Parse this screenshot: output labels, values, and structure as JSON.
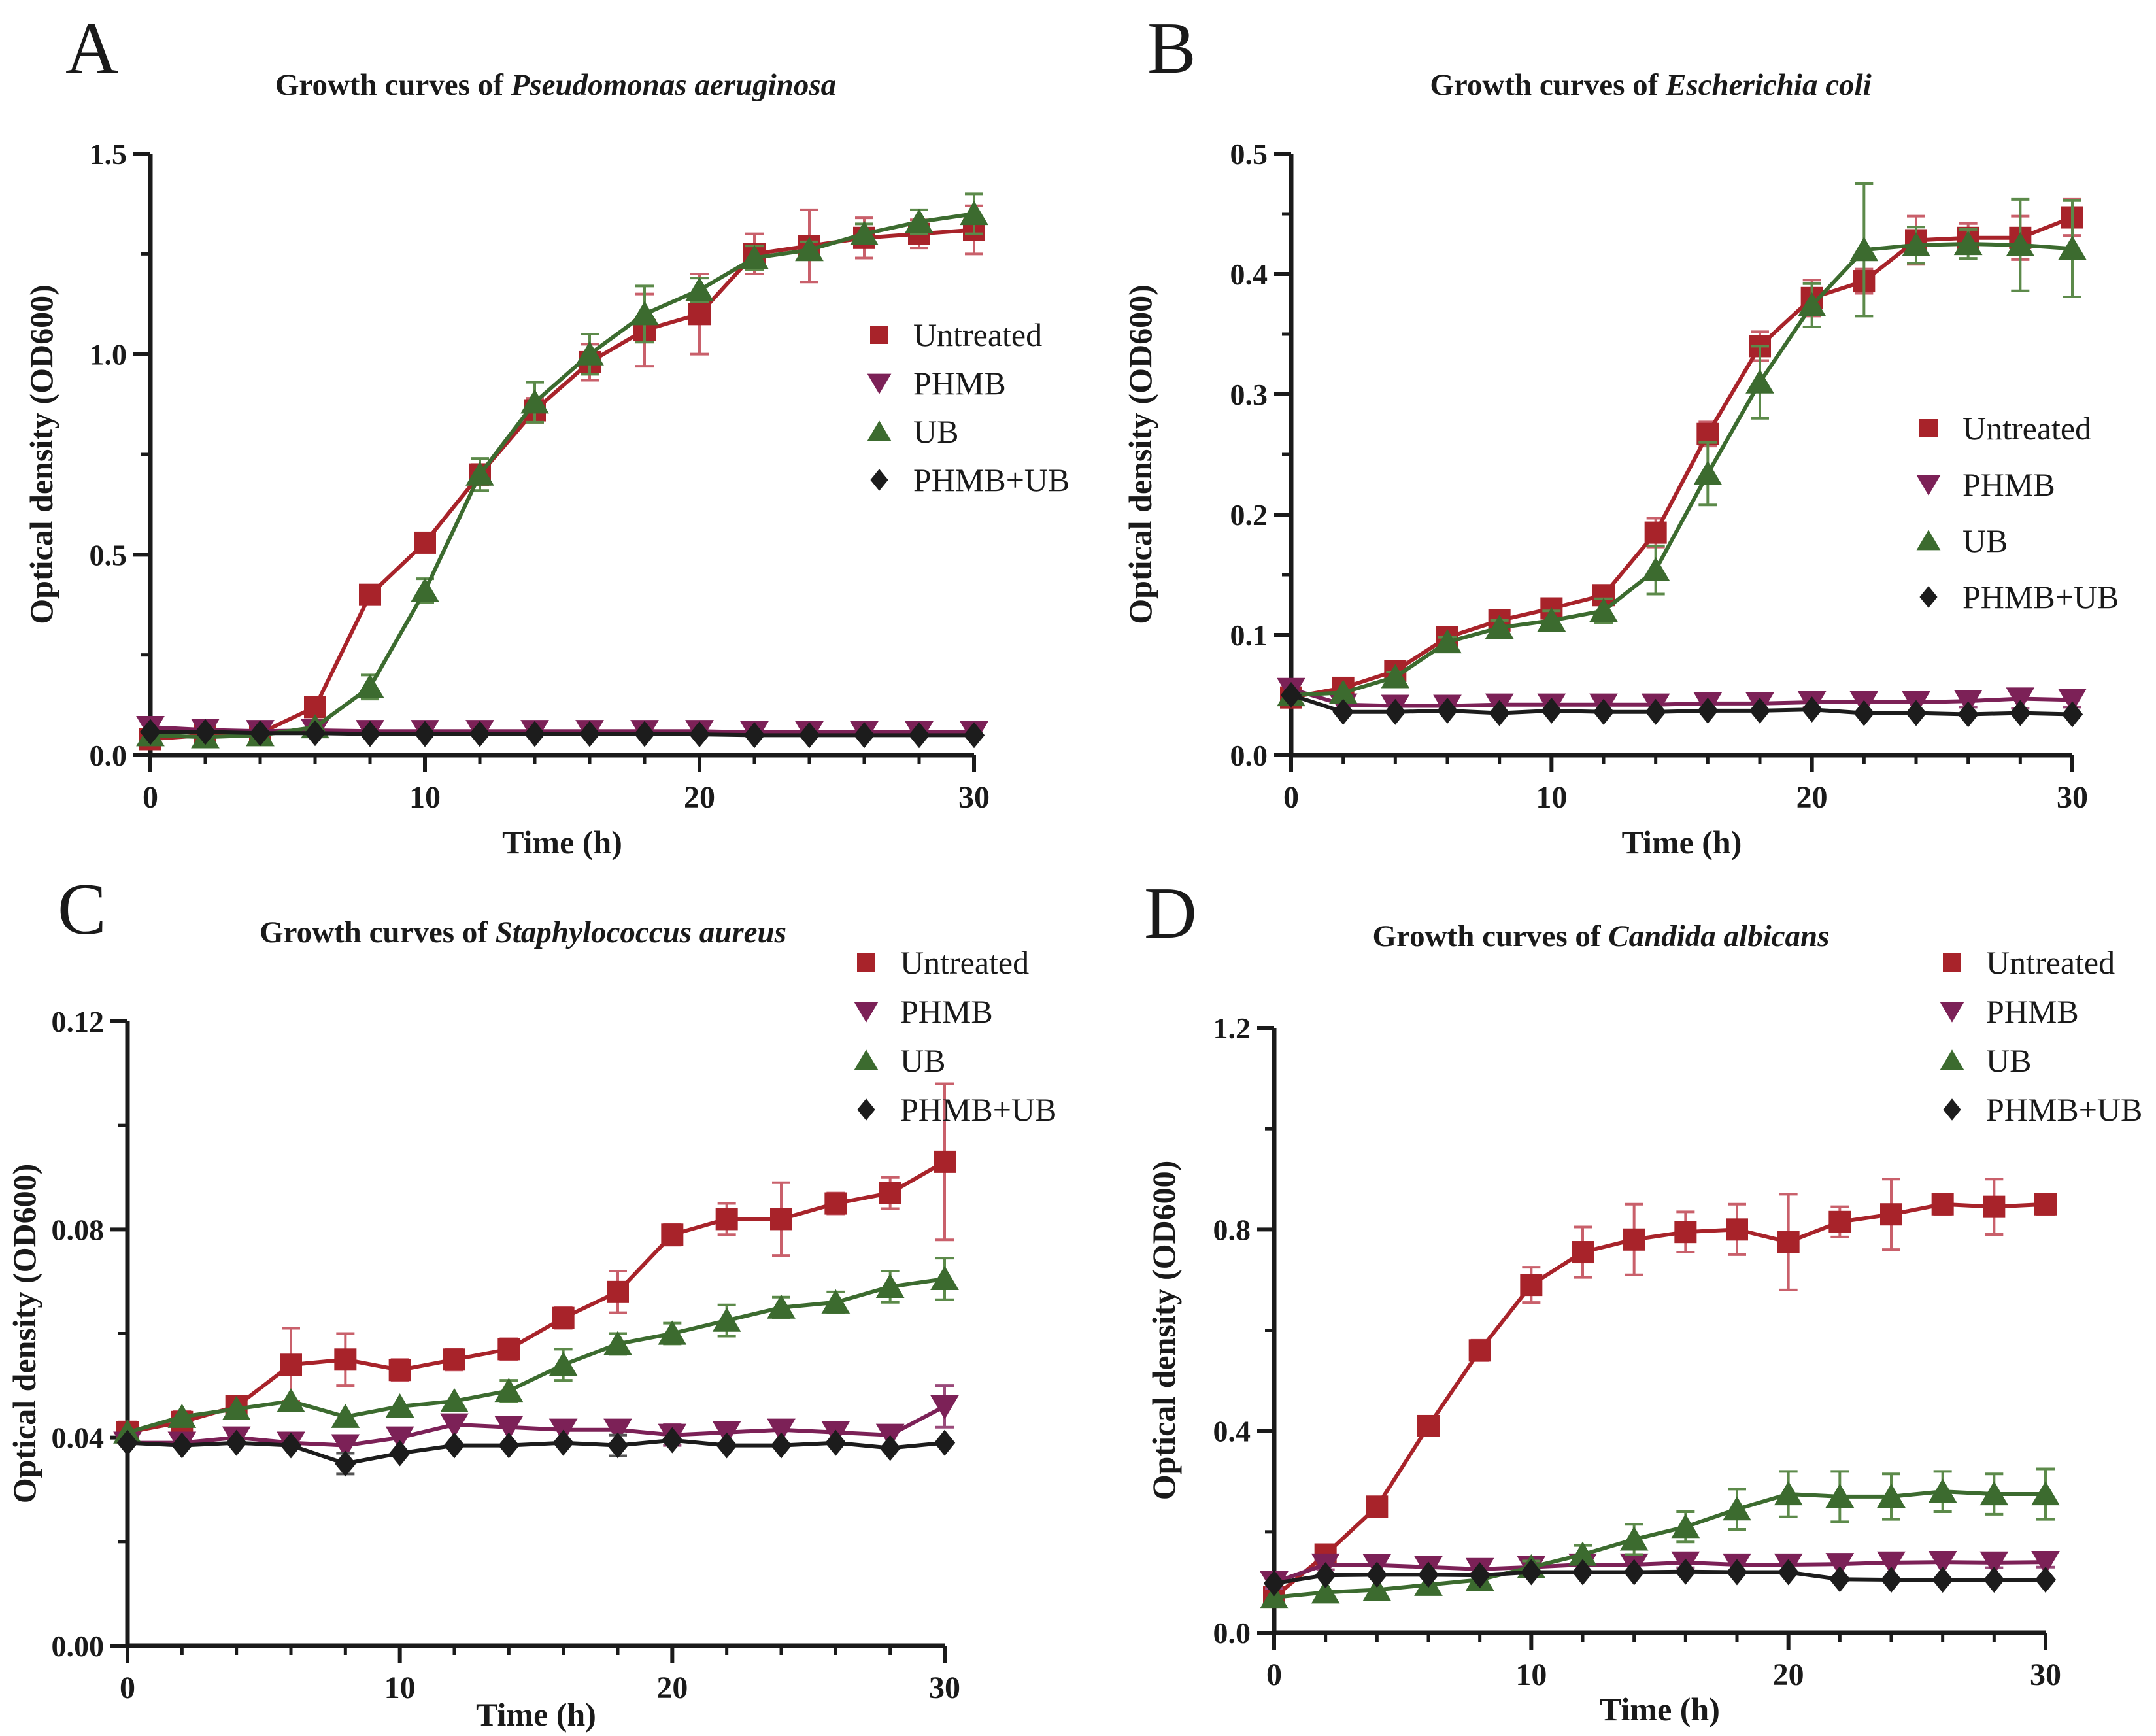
{
  "figure_background": "#ffffff",
  "xlabel": "Time (h)",
  "ylabel": "Optical density (OD600)",
  "legend_labels": [
    "Untreated",
    "PHMB",
    "UB",
    "PHMB+UB"
  ],
  "colors": {
    "untreated": "#A8232A",
    "phmb": "#7C2157",
    "ub": "#3C6B2F",
    "phmb_ub": "#1C1C1C",
    "axis": "#1a1a1a",
    "untreated_error": "#C9606B",
    "phmb_error": "#9A4A7A",
    "ub_error": "#5C8A4A",
    "phmb_ub_error": "#555555"
  },
  "chart_data": [
    {
      "type": "line",
      "panel_label": "A",
      "title_prefix": "Growth curves of ",
      "title_species": "Pseudomonas aeruginosa",
      "xlabel": "Time (h)",
      "ylabel": "Optical density (OD600)",
      "xlim": [
        0,
        30
      ],
      "ylim": [
        0,
        1.5
      ],
      "x": [
        0,
        2,
        4,
        6,
        8,
        10,
        12,
        14,
        16,
        18,
        20,
        22,
        24,
        26,
        28,
        30
      ],
      "xticks": [
        {
          "v": 0,
          "label": "0"
        },
        {
          "v": 10,
          "label": "10"
        },
        {
          "v": 20,
          "label": "20"
        },
        {
          "v": 30,
          "label": "30"
        }
      ],
      "xminor": [
        2,
        4,
        6,
        8,
        12,
        14,
        16,
        18,
        22,
        24,
        26,
        28
      ],
      "yticks": [
        {
          "v": 0,
          "label": "0.0"
        },
        {
          "v": 0.5,
          "label": "0.5"
        },
        {
          "v": 1.0,
          "label": "1.0"
        },
        {
          "v": 1.5,
          "label": "1.5"
        }
      ],
      "yminor": [
        0.25,
        0.75,
        1.25
      ],
      "legend_position": "right-middle",
      "series": [
        {
          "name": "Untreated",
          "marker": "square",
          "color": "#A8232A",
          "err_color": "#C9606B",
          "values": [
            0.04,
            0.05,
            0.055,
            0.12,
            0.4,
            0.53,
            0.7,
            0.86,
            0.98,
            1.06,
            1.1,
            1.25,
            1.27,
            1.29,
            1.3,
            1.31
          ],
          "errors": [
            0,
            0,
            0,
            0,
            0.02,
            0.02,
            0.025,
            0.03,
            0.045,
            0.09,
            0.1,
            0.05,
            0.09,
            0.05,
            0.035,
            0.06
          ]
        },
        {
          "name": "PHMB",
          "marker": "triangle-down",
          "color": "#7C2157",
          "err_color": "#9A4A7A",
          "values": [
            0.07,
            0.063,
            0.06,
            0.062,
            0.06,
            0.06,
            0.06,
            0.06,
            0.06,
            0.06,
            0.06,
            0.057,
            0.057,
            0.057,
            0.057,
            0.057
          ],
          "errors": [
            0,
            0,
            0,
            0,
            0,
            0,
            0,
            0,
            0,
            0,
            0,
            0,
            0,
            0,
            0,
            0
          ]
        },
        {
          "name": "UB",
          "marker": "triangle-up",
          "color": "#3C6B2F",
          "err_color": "#5C8A4A",
          "values": [
            0.05,
            0.045,
            0.05,
            0.07,
            0.17,
            0.41,
            0.7,
            0.88,
            1.0,
            1.1,
            1.16,
            1.24,
            1.26,
            1.3,
            1.33,
            1.35
          ],
          "errors": [
            0,
            0,
            0,
            0,
            0.03,
            0.03,
            0.04,
            0.05,
            0.05,
            0.07,
            0.03,
            0.03,
            0.02,
            0.025,
            0.03,
            0.05
          ]
        },
        {
          "name": "PHMB+UB",
          "marker": "diamond",
          "color": "#1C1C1C",
          "err_color": "#555555",
          "values": [
            0.058,
            0.058,
            0.055,
            0.055,
            0.053,
            0.053,
            0.053,
            0.053,
            0.053,
            0.053,
            0.052,
            0.05,
            0.05,
            0.05,
            0.05,
            0.05
          ],
          "errors": [
            0,
            0,
            0,
            0,
            0,
            0,
            0,
            0,
            0,
            0,
            0,
            0,
            0,
            0,
            0,
            0
          ]
        }
      ]
    },
    {
      "type": "line",
      "panel_label": "B",
      "title_prefix": "Growth curves of ",
      "title_species": "Escherichia coli",
      "xlabel": "Time (h)",
      "ylabel": "Optical density (OD600)",
      "xlim": [
        0,
        30
      ],
      "ylim": [
        0,
        0.5
      ],
      "x": [
        0,
        2,
        4,
        6,
        8,
        10,
        12,
        14,
        16,
        18,
        20,
        22,
        24,
        26,
        28,
        30
      ],
      "xticks": [
        {
          "v": 0,
          "label": "0"
        },
        {
          "v": 10,
          "label": "10"
        },
        {
          "v": 20,
          "label": "20"
        },
        {
          "v": 30,
          "label": "30"
        }
      ],
      "xminor": [
        2,
        4,
        6,
        8,
        12,
        14,
        16,
        18,
        22,
        24,
        26,
        28
      ],
      "yticks": [
        {
          "v": 0,
          "label": "0.0"
        },
        {
          "v": 0.1,
          "label": "0.1"
        },
        {
          "v": 0.2,
          "label": "0.2"
        },
        {
          "v": 0.3,
          "label": "0.3"
        },
        {
          "v": 0.4,
          "label": "0.4"
        },
        {
          "v": 0.5,
          "label": "0.5"
        }
      ],
      "yminor": [
        0.05,
        0.15,
        0.25,
        0.35,
        0.45
      ],
      "legend_position": "right-middle",
      "series": [
        {
          "name": "Untreated",
          "marker": "square",
          "color": "#A8232A",
          "err_color": "#C9606B",
          "values": [
            0.048,
            0.056,
            0.07,
            0.098,
            0.112,
            0.122,
            0.133,
            0.185,
            0.267,
            0.34,
            0.38,
            0.394,
            0.428,
            0.43,
            0.43,
            0.447
          ],
          "errors": [
            0,
            0,
            0.004,
            0.005,
            0.006,
            0.008,
            0.008,
            0.012,
            0.01,
            0.012,
            0.015,
            0.01,
            0.02,
            0.012,
            0.018,
            0.015
          ]
        },
        {
          "name": "PHMB",
          "marker": "triangle-down",
          "color": "#7C2157",
          "err_color": "#9A4A7A",
          "values": [
            0.055,
            0.042,
            0.041,
            0.041,
            0.042,
            0.042,
            0.042,
            0.042,
            0.043,
            0.043,
            0.044,
            0.044,
            0.044,
            0.045,
            0.047,
            0.046
          ],
          "errors": [
            0,
            0,
            0,
            0,
            0,
            0,
            0,
            0,
            0,
            0,
            0.004,
            0,
            0,
            0.005,
            0.008,
            0.006
          ]
        },
        {
          "name": "UB",
          "marker": "triangle-up",
          "color": "#3C6B2F",
          "err_color": "#5C8A4A",
          "values": [
            0.05,
            0.052,
            0.065,
            0.094,
            0.106,
            0.112,
            0.12,
            0.154,
            0.234,
            0.31,
            0.374,
            0.42,
            0.424,
            0.425,
            0.424,
            0.421
          ],
          "errors": [
            0,
            0,
            0.004,
            0.004,
            0.006,
            0.008,
            0.01,
            0.02,
            0.026,
            0.03,
            0.018,
            0.055,
            0.015,
            0.012,
            0.038,
            0.04
          ]
        },
        {
          "name": "PHMB+UB",
          "marker": "diamond",
          "color": "#1C1C1C",
          "err_color": "#555555",
          "values": [
            0.05,
            0.036,
            0.036,
            0.037,
            0.035,
            0.037,
            0.036,
            0.036,
            0.037,
            0.037,
            0.038,
            0.035,
            0.035,
            0.034,
            0.035,
            0.034
          ],
          "errors": [
            0,
            0,
            0,
            0,
            0,
            0,
            0,
            0,
            0,
            0,
            0,
            0,
            0,
            0,
            0,
            0
          ]
        }
      ]
    },
    {
      "type": "line",
      "panel_label": "C",
      "title_prefix": "Growth curves of ",
      "title_species": "Staphylococcus aureus",
      "xlabel": "Time (h)",
      "ylabel": "Optical density (OD600)",
      "xlim": [
        0,
        30
      ],
      "ylim": [
        0,
        0.12
      ],
      "x": [
        0,
        2,
        4,
        6,
        8,
        10,
        12,
        14,
        16,
        18,
        20,
        22,
        24,
        26,
        28,
        30
      ],
      "xticks": [
        {
          "v": 0,
          "label": "0"
        },
        {
          "v": 10,
          "label": "10"
        },
        {
          "v": 20,
          "label": "20"
        },
        {
          "v": 30,
          "label": "30"
        }
      ],
      "xminor": [
        2,
        4,
        6,
        8,
        12,
        14,
        16,
        18,
        22,
        24,
        26,
        28
      ],
      "yticks": [
        {
          "v": 0,
          "label": "0.00"
        },
        {
          "v": 0.04,
          "label": "0.04"
        },
        {
          "v": 0.08,
          "label": "0.08"
        },
        {
          "v": 0.12,
          "label": "0.12"
        }
      ],
      "yminor": [
        0.02,
        0.06,
        0.1
      ],
      "legend_position": "top-right",
      "series": [
        {
          "name": "Untreated",
          "marker": "square",
          "color": "#A8232A",
          "err_color": "#C9606B",
          "values": [
            0.041,
            0.043,
            0.046,
            0.054,
            0.055,
            0.053,
            0.055,
            0.057,
            0.063,
            0.068,
            0.079,
            0.082,
            0.082,
            0.085,
            0.087,
            0.093
          ],
          "errors": [
            0.002,
            0.002,
            0.002,
            0.007,
            0.005,
            0.002,
            0.002,
            0.002,
            0.002,
            0.004,
            0.002,
            0.003,
            0.007,
            0.002,
            0.003,
            0.015
          ]
        },
        {
          "name": "PHMB",
          "marker": "triangle-down",
          "color": "#7C2157",
          "err_color": "#9A4A7A",
          "values": [
            0.039,
            0.039,
            0.04,
            0.039,
            0.0385,
            0.04,
            0.0425,
            0.042,
            0.0415,
            0.0415,
            0.0405,
            0.041,
            0.0415,
            0.041,
            0.0405,
            0.046
          ],
          "errors": [
            0,
            0,
            0,
            0,
            0,
            0,
            0,
            0,
            0,
            0,
            0.002,
            0,
            0,
            0,
            0,
            0.004
          ]
        },
        {
          "name": "UB",
          "marker": "triangle-up",
          "color": "#3C6B2F",
          "err_color": "#5C8A4A",
          "values": [
            0.041,
            0.044,
            0.0455,
            0.047,
            0.044,
            0.046,
            0.047,
            0.049,
            0.054,
            0.058,
            0.06,
            0.0625,
            0.065,
            0.066,
            0.069,
            0.0705
          ],
          "errors": [
            0,
            0,
            0,
            0,
            0,
            0,
            0,
            0.002,
            0.003,
            0.002,
            0.002,
            0.003,
            0.002,
            0.002,
            0.003,
            0.004
          ]
        },
        {
          "name": "PHMB+UB",
          "marker": "diamond",
          "color": "#1C1C1C",
          "err_color": "#555555",
          "values": [
            0.039,
            0.0385,
            0.039,
            0.0385,
            0.035,
            0.037,
            0.0385,
            0.0385,
            0.039,
            0.0385,
            0.0395,
            0.0385,
            0.0385,
            0.039,
            0.038,
            0.039
          ],
          "errors": [
            0,
            0,
            0,
            0,
            0.002,
            0,
            0,
            0,
            0,
            0.002,
            0,
            0,
            0,
            0,
            0,
            0
          ]
        }
      ]
    },
    {
      "type": "line",
      "panel_label": "D",
      "title_prefix": "Growth curves of ",
      "title_species": "Candida albicans",
      "xlabel": "Time (h)",
      "ylabel": "Optical density (OD600)",
      "xlim": [
        0,
        30
      ],
      "ylim": [
        0,
        1.2
      ],
      "x": [
        0,
        2,
        4,
        6,
        8,
        10,
        12,
        14,
        16,
        18,
        20,
        22,
        24,
        26,
        28,
        30
      ],
      "xticks": [
        {
          "v": 0,
          "label": "0"
        },
        {
          "v": 10,
          "label": "10"
        },
        {
          "v": 20,
          "label": "20"
        },
        {
          "v": 30,
          "label": "30"
        }
      ],
      "xminor": [
        2,
        4,
        6,
        8,
        12,
        14,
        16,
        18,
        22,
        24,
        26,
        28
      ],
      "yticks": [
        {
          "v": 0,
          "label": "0.0"
        },
        {
          "v": 0.4,
          "label": "0.4"
        },
        {
          "v": 0.8,
          "label": "0.8"
        },
        {
          "v": 1.2,
          "label": "1.2"
        }
      ],
      "yminor": [
        0.2,
        0.6,
        1.0
      ],
      "legend_position": "top-right",
      "series": [
        {
          "name": "Untreated",
          "marker": "square",
          "color": "#A8232A",
          "err_color": "#C9606B",
          "values": [
            0.07,
            0.155,
            0.25,
            0.41,
            0.56,
            0.69,
            0.755,
            0.78,
            0.795,
            0.8,
            0.775,
            0.815,
            0.83,
            0.85,
            0.845,
            0.85
          ],
          "errors": [
            0,
            0.012,
            0.012,
            0.015,
            0.02,
            0.035,
            0.05,
            0.07,
            0.04,
            0.05,
            0.095,
            0.03,
            0.07,
            0.02,
            0.055,
            0.02
          ]
        },
        {
          "name": "PHMB",
          "marker": "triangle-down",
          "color": "#7C2157",
          "err_color": "#9A4A7A",
          "values": [
            0.1,
            0.135,
            0.134,
            0.13,
            0.126,
            0.13,
            0.135,
            0.135,
            0.139,
            0.135,
            0.135,
            0.136,
            0.139,
            0.14,
            0.139,
            0.14
          ],
          "errors": [
            0.012,
            0.01,
            0,
            0,
            0.008,
            0,
            0,
            0,
            0.01,
            0,
            0,
            0,
            0,
            0,
            0.01,
            0.01
          ]
        },
        {
          "name": "UB",
          "marker": "triangle-up",
          "color": "#3C6B2F",
          "err_color": "#5C8A4A",
          "values": [
            0.07,
            0.08,
            0.085,
            0.095,
            0.105,
            0.13,
            0.155,
            0.185,
            0.21,
            0.245,
            0.275,
            0.27,
            0.27,
            0.28,
            0.275,
            0.275
          ],
          "errors": [
            0,
            0,
            0,
            0,
            0.012,
            0.012,
            0.018,
            0.03,
            0.03,
            0.04,
            0.045,
            0.05,
            0.045,
            0.04,
            0.04,
            0.05
          ]
        },
        {
          "name": "PHMB+UB",
          "marker": "diamond",
          "color": "#1C1C1C",
          "err_color": "#555555",
          "values": [
            0.098,
            0.114,
            0.115,
            0.115,
            0.114,
            0.12,
            0.12,
            0.12,
            0.121,
            0.12,
            0.12,
            0.106,
            0.105,
            0.105,
            0.105,
            0.105
          ],
          "errors": [
            0,
            0,
            0,
            0,
            0,
            0,
            0,
            0,
            0,
            0,
            0,
            0,
            0,
            0,
            0,
            0
          ]
        }
      ]
    }
  ]
}
